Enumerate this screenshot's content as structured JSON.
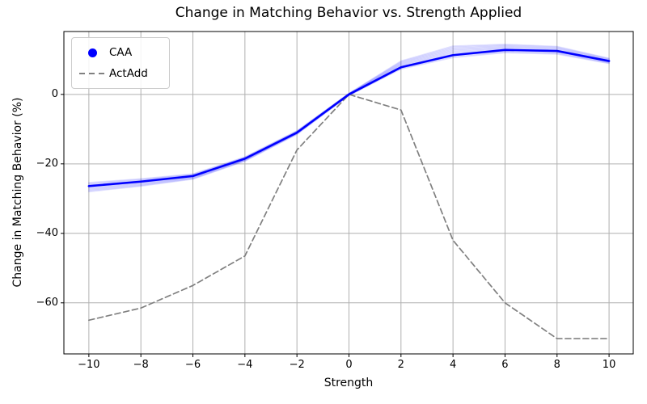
{
  "title": "Change in Matching Behavior vs. Strength Applied",
  "legend": {
    "items": [
      {
        "label": "CAA",
        "marker": "circle-icon",
        "color": "#0000ff"
      },
      {
        "label": "ActAdd",
        "marker": "dashed-line-icon",
        "color": "#808080"
      }
    ]
  },
  "chart_data": {
    "type": "line",
    "title": "Change in Matching Behavior vs. Strength Applied",
    "xlabel": "Strength",
    "ylabel": "Change in Matching Behavior (%)",
    "xlim": [
      -10.96,
      10.93
    ],
    "ylim": [
      -74.7,
      18.1
    ],
    "x_ticks": [
      -10,
      -8,
      -6,
      -4,
      -2,
      0,
      2,
      4,
      6,
      8,
      10
    ],
    "y_ticks": [
      0,
      -20,
      -40,
      -60
    ],
    "grid": true,
    "grid_color": "#b0b0b0",
    "legend_position": "upper left",
    "x": [
      -10,
      -8,
      -6,
      -4,
      -2,
      0,
      2,
      4,
      6,
      8,
      10
    ],
    "series": [
      {
        "name": "CAA",
        "color": "#0000ff",
        "style": "solid",
        "width": 2.6,
        "values": [
          -26.4,
          -25.1,
          -23.5,
          -18.5,
          -11.0,
          0.0,
          7.8,
          11.3,
          12.8,
          12.5,
          9.6
        ]
      },
      {
        "name": "ActAdd",
        "color": "#808080",
        "style": "dashed",
        "width": 1.7,
        "values": [
          -65.0,
          -61.5,
          -55.0,
          -46.5,
          -16.0,
          0.0,
          -4.5,
          -42.0,
          -60.0,
          -70.3,
          -70.3
        ]
      }
    ],
    "caa_fan": {
      "count": 11,
      "color": "#0000ff",
      "alpha": 0.12,
      "top": [
        -25.4,
        -24.3,
        -22.9,
        -18.0,
        -10.5,
        0.3,
        9.6,
        13.9,
        14.4,
        13.8,
        10.4
      ],
      "bottom": [
        -28.0,
        -26.4,
        -24.4,
        -19.2,
        -11.5,
        -0.3,
        7.3,
        10.6,
        12.0,
        11.6,
        8.9
      ]
    }
  }
}
